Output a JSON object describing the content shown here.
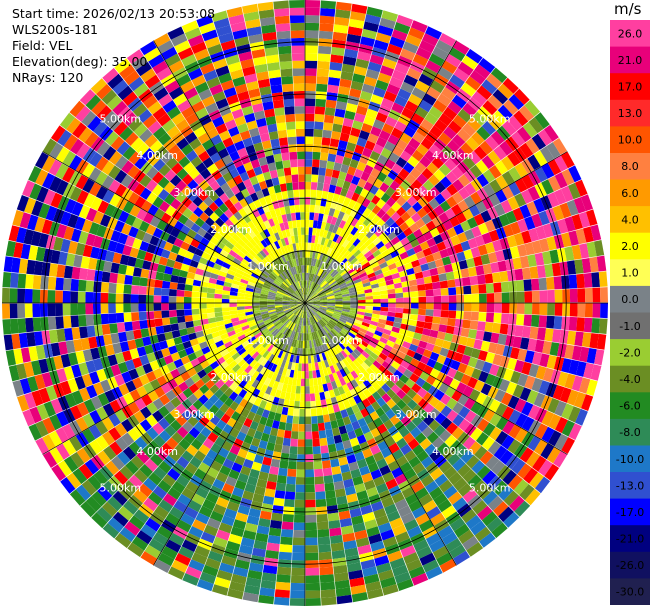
{
  "header": {
    "start_time": "Start time: 2026/02/13 20:53:08",
    "instrument": "WLS200s-181",
    "field": "Field: VEL",
    "elevation": "Elevation(deg): 35.00",
    "nrays": "NRays: 120"
  },
  "chart_data": {
    "type": "heatmap",
    "projection": "ppi-polar",
    "field": "VEL",
    "units": "m/s",
    "nrays": 120,
    "range_rings_km": [
      "1.00km",
      "2.00km",
      "3.00km",
      "4.00km",
      "5.00km"
    ],
    "ring_values_km": [
      1,
      2,
      3,
      4,
      5
    ],
    "colorbar": {
      "title": "m/s",
      "tick_labels": [
        "26.0",
        "21.0",
        "17.0",
        "13.0",
        "10.0",
        "8.0",
        "6.0",
        "4.0",
        "2.0",
        "1.0",
        "0.0",
        "-1.0",
        "-2.0",
        "-4.0",
        "-6.0",
        "-8.0",
        "-10.0",
        "-13.0",
        "-17.0",
        "-21.0",
        "-26.0",
        "-30.0"
      ],
      "colors": [
        "#ff3fa0",
        "#e8007a",
        "#ff0000",
        "#ff2a2a",
        "#ff5500",
        "#ff8040",
        "#ff9a00",
        "#ffc000",
        "#ffff00",
        "#ffff55",
        "#7a8288",
        "#707070",
        "#9acd32",
        "#6b8e23",
        "#228b22",
        "#2e8b57",
        "#1e78c8",
        "#3050d0",
        "#0000ff",
        "#000080",
        "#101060",
        "#202050"
      ]
    },
    "regions": {
      "near_range_km": 1.0,
      "mid_range_km": 2.0,
      "description_colors_near": [
        "#ffff00",
        "#7a8288",
        "#9acd32",
        "#6b8e23"
      ],
      "outer_random_colors": [
        "#ff3fa0",
        "#e8007a",
        "#ff0000",
        "#ff9a00",
        "#ffff00",
        "#7a8288",
        "#9acd32",
        "#6b8e23",
        "#228b22",
        "#0000ff",
        "#000080",
        "#3050d0",
        "#ff5500",
        "#ffc000"
      ],
      "south_dominant": [
        "#228b22",
        "#6b8e23",
        "#2e8b57",
        "#1e78c8"
      ],
      "east_dominant": [
        "#ff3fa0",
        "#ff0000",
        "#e8007a",
        "#ff8040"
      ]
    }
  }
}
